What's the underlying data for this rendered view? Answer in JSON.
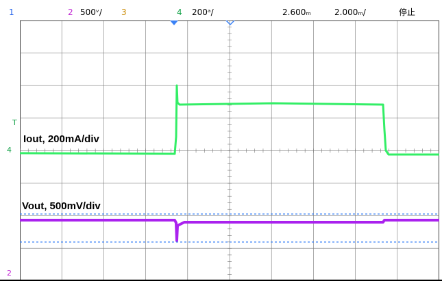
{
  "status_bar": {
    "ch1_number": "1",
    "ch2_number": "2",
    "ch2_scale": "500ᵛ/",
    "ch3_number": "3",
    "ch4_number": "4",
    "ch4_scale": "200ᵃ/",
    "time_position": "2.600ₘ",
    "timebase": "2.000ₘ/",
    "run_state": "停止"
  },
  "markers": {
    "ch4_ground": "4",
    "ch2_ground": "2",
    "trigger_level": "T"
  },
  "annotations": {
    "current_label": "Iout, 200mA/div",
    "voltage_label": "Vout, 500mV/div"
  },
  "colors": {
    "ch1": "#2563eb",
    "ch2": "#c026d3",
    "ch3": "#ca8a04",
    "ch4": "#16a34a",
    "trace_current": "#33ee66",
    "trace_voltage": "#aa22ee",
    "cursor": "#3b82f6"
  }
}
